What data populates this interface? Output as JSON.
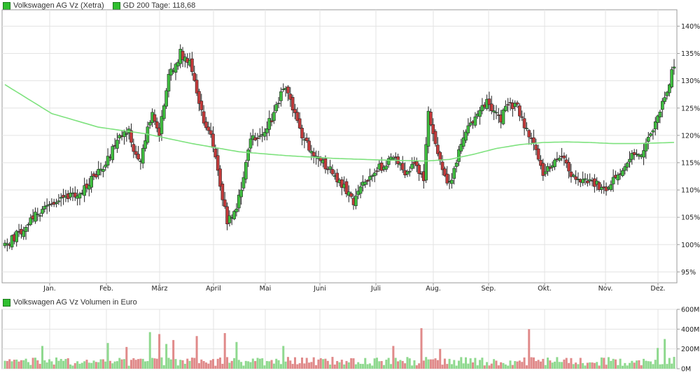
{
  "legend": {
    "price_label": "Volkswagen AG Vz (Xetra)",
    "ma_label": "GD 200 Tage: 118,68",
    "volume_label": "Volkswagen AG Vz Volumen in Euro"
  },
  "colors": {
    "up": "#3fbf3f",
    "down": "#c43a3a",
    "ma_line": "#7ee27e",
    "vol_up": "#8fd98f",
    "vol_down": "#e08a8a",
    "grid": "#e3e3e3",
    "frame": "#9a9a9a"
  },
  "chart_data": [
    {
      "type": "candlestick",
      "title": "Volkswagen AG Vz (Xetra)",
      "y_unit": "%",
      "ylim": [
        93,
        143
      ],
      "y_ticks": [
        "95%",
        "100%",
        "105%",
        "110%",
        "115%",
        "120%",
        "125%",
        "130%",
        "135%",
        "140%"
      ],
      "x_ticks": [
        "Jan.",
        "Feb.",
        "März",
        "April",
        "Mai",
        "Juni",
        "Juli",
        "Aug.",
        "Sep.",
        "Okt.",
        "Nov.",
        "Dez."
      ],
      "grid": true,
      "legend_position": "top-left",
      "series_name": "Volkswagen AG Vz (Xetra)",
      "anchors": [
        [
          0,
          99.5
        ],
        [
          10,
          104
        ],
        [
          20,
          108
        ],
        [
          30,
          109
        ],
        [
          40,
          113
        ],
        [
          48,
          119
        ],
        [
          53,
          121
        ],
        [
          55,
          117
        ],
        [
          58,
          116
        ],
        [
          63,
          124
        ],
        [
          66,
          120
        ],
        [
          70,
          131
        ],
        [
          75,
          135
        ],
        [
          79,
          133
        ],
        [
          84,
          124
        ],
        [
          88,
          120
        ],
        [
          92,
          111
        ],
        [
          95,
          104
        ],
        [
          99,
          107
        ],
        [
          102,
          112
        ],
        [
          105,
          119
        ],
        [
          110,
          120
        ],
        [
          115,
          124
        ],
        [
          119,
          129
        ],
        [
          122,
          126
        ],
        [
          126,
          121
        ],
        [
          130,
          118
        ],
        [
          136,
          115
        ],
        [
          142,
          112
        ],
        [
          149,
          108
        ],
        [
          154,
          112
        ],
        [
          160,
          114
        ],
        [
          166,
          116
        ],
        [
          171,
          113
        ],
        [
          175,
          115
        ],
        [
          179,
          112
        ],
        [
          181,
          125
        ],
        [
          184,
          118
        ],
        [
          187,
          114
        ],
        [
          190,
          111
        ],
        [
          194,
          117
        ],
        [
          198,
          122
        ],
        [
          202,
          124
        ],
        [
          206,
          126
        ],
        [
          208,
          124
        ],
        [
          212,
          123
        ],
        [
          215,
          126
        ],
        [
          219,
          125
        ],
        [
          223,
          121
        ],
        [
          226,
          118
        ],
        [
          230,
          113
        ],
        [
          234,
          115
        ],
        [
          238,
          116
        ],
        [
          242,
          113
        ],
        [
          246,
          111
        ],
        [
          250,
          112
        ],
        [
          256,
          110
        ],
        [
          261,
          112
        ],
        [
          266,
          115
        ],
        [
          268,
          117
        ],
        [
          271,
          116
        ],
        [
          274,
          119
        ],
        [
          278,
          122
        ],
        [
          281,
          126
        ],
        [
          284,
          130
        ],
        [
          286,
          133
        ]
      ],
      "ma_points": [
        [
          0,
          129.3
        ],
        [
          20,
          124
        ],
        [
          40,
          121.5
        ],
        [
          60,
          120.3
        ],
        [
          80,
          118.5
        ],
        [
          100,
          117
        ],
        [
          120,
          116.3
        ],
        [
          140,
          115.8
        ],
        [
          160,
          115.5
        ],
        [
          180,
          115.3
        ],
        [
          190,
          115.6
        ],
        [
          200,
          116.5
        ],
        [
          210,
          117.6
        ],
        [
          220,
          118.3
        ],
        [
          230,
          118.7
        ],
        [
          240,
          118.8
        ],
        [
          250,
          118.7
        ],
        [
          260,
          118.5
        ],
        [
          270,
          118.5
        ],
        [
          286,
          118.7
        ]
      ],
      "n_days": 287
    },
    {
      "type": "bar",
      "title": "Volkswagen AG Vz Volumen in Euro",
      "y_ticks": [
        "0M",
        "200M",
        "400M",
        "600M"
      ],
      "ylim": [
        0,
        600
      ],
      "y_unit": "M Euro",
      "grid": true,
      "peaks": [
        [
          16,
          230
        ],
        [
          44,
          260
        ],
        [
          52,
          220
        ],
        [
          62,
          370
        ],
        [
          66,
          350
        ],
        [
          69,
          250
        ],
        [
          72,
          290
        ],
        [
          82,
          330
        ],
        [
          94,
          360
        ],
        [
          99,
          270
        ],
        [
          119,
          230
        ],
        [
          166,
          230
        ],
        [
          178,
          410
        ],
        [
          186,
          200
        ],
        [
          224,
          400
        ],
        [
          279,
          210
        ],
        [
          282,
          300
        ]
      ]
    }
  ]
}
